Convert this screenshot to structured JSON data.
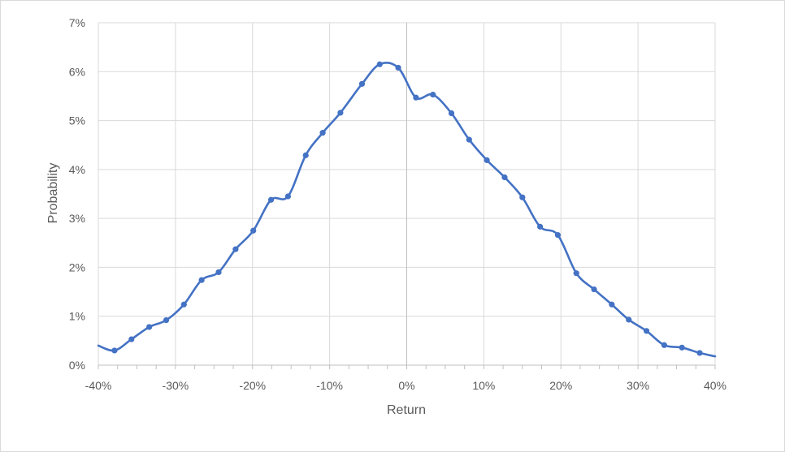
{
  "chart_data": {
    "type": "line",
    "title": "",
    "xlabel": "Return",
    "ylabel": "Probability",
    "xlim": [
      -0.4,
      0.4
    ],
    "ylim": [
      0,
      0.07
    ],
    "x_ticks": [
      -0.4,
      -0.3,
      -0.2,
      -0.1,
      0,
      0.1,
      0.2,
      0.3,
      0.4
    ],
    "x_tick_labels": [
      "-40%",
      "-30%",
      "-20%",
      "-10%",
      "0%",
      "10%",
      "20%",
      "30%",
      "40%"
    ],
    "y_ticks": [
      0,
      0.01,
      0.02,
      0.03,
      0.04,
      0.05,
      0.06,
      0.07
    ],
    "y_tick_labels": [
      "0%",
      "1%",
      "2%",
      "3%",
      "4%",
      "5%",
      "6%",
      "7%"
    ],
    "grid": true,
    "legend": "none",
    "series": [
      {
        "color": "#4472c4",
        "smooth": true,
        "x": [
          -0.379,
          -0.357,
          -0.334,
          -0.312,
          -0.289,
          -0.266,
          -0.244,
          -0.222,
          -0.199,
          -0.176,
          -0.154,
          -0.131,
          -0.109,
          -0.086,
          -0.058,
          -0.035,
          -0.011,
          0.012,
          0.034,
          0.058,
          0.081,
          0.104,
          0.127,
          0.15,
          0.173,
          0.196,
          0.22,
          0.243,
          0.266,
          0.288,
          0.311,
          0.334,
          0.357,
          0.38
        ],
        "y": [
          0.003,
          0.0053,
          0.0078,
          0.0092,
          0.0124,
          0.0174,
          0.019,
          0.0237,
          0.0275,
          0.0338,
          0.0345,
          0.0429,
          0.0475,
          0.0516,
          0.0575,
          0.0615,
          0.0608,
          0.0547,
          0.0553,
          0.0515,
          0.0461,
          0.0419,
          0.0384,
          0.0343,
          0.0283,
          0.0266,
          0.0188,
          0.0155,
          0.0124,
          0.0093,
          0.007,
          0.0041,
          0.0036,
          0.0025
        ]
      }
    ],
    "line_extensions": {
      "left": {
        "x": -0.4,
        "y": 0.004
      },
      "right": {
        "x": 0.4,
        "y": 0.0018
      }
    }
  }
}
